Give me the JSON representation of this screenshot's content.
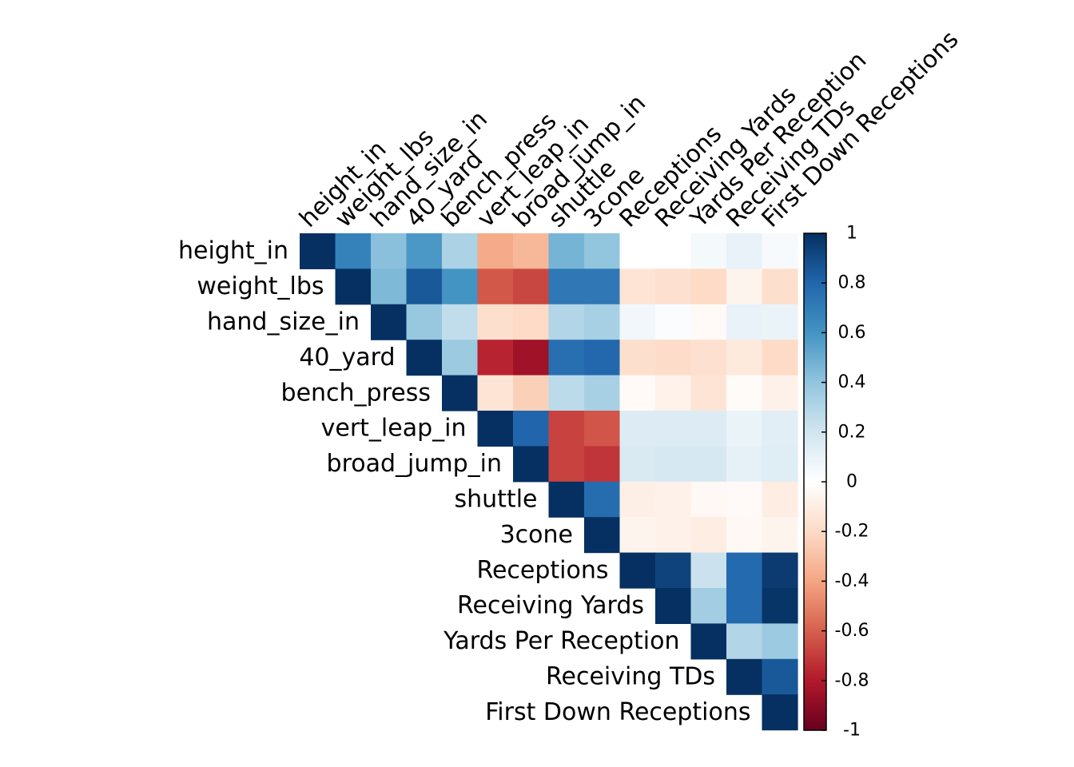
{
  "chart_data": {
    "type": "heatmap",
    "variables": [
      "height_in",
      "weight_lbs",
      "hand_size_in",
      "40_yard",
      "bench_press",
      "vert_leap_in",
      "broad_jump_in",
      "shuttle",
      "3cone",
      "Receptions",
      "Receiving Yards",
      "Yards Per Reception",
      "Receiving TDs",
      "First Down Receptions"
    ],
    "triangle": "upper",
    "matrix": [
      [
        1,
        0.68,
        0.42,
        0.58,
        0.32,
        -0.38,
        -0.33,
        0.47,
        0.4,
        0.0,
        0.0,
        0.05,
        0.1,
        0.04
      ],
      [
        null,
        1,
        0.45,
        0.85,
        0.6,
        -0.62,
        -0.67,
        0.72,
        0.72,
        -0.15,
        -0.17,
        -0.2,
        -0.06,
        -0.18
      ],
      [
        null,
        null,
        1,
        0.38,
        0.25,
        -0.18,
        -0.2,
        0.3,
        0.33,
        0.06,
        0.02,
        -0.03,
        0.1,
        0.09
      ],
      [
        null,
        null,
        null,
        1,
        0.37,
        -0.77,
        -0.85,
        0.76,
        0.79,
        -0.18,
        -0.19,
        -0.17,
        -0.12,
        -0.2
      ],
      [
        null,
        null,
        null,
        null,
        1,
        -0.15,
        -0.24,
        0.27,
        0.33,
        -0.03,
        -0.07,
        -0.15,
        -0.02,
        -0.08
      ],
      [
        null,
        null,
        null,
        null,
        null,
        1,
        0.8,
        -0.68,
        -0.63,
        0.15,
        0.15,
        0.15,
        0.09,
        0.13
      ],
      [
        null,
        null,
        null,
        null,
        null,
        null,
        1,
        -0.68,
        -0.72,
        0.16,
        0.18,
        0.18,
        0.11,
        0.14
      ],
      [
        null,
        null,
        null,
        null,
        null,
        null,
        null,
        1,
        0.77,
        -0.09,
        -0.08,
        -0.04,
        -0.03,
        -0.1
      ],
      [
        null,
        null,
        null,
        null,
        null,
        null,
        null,
        null,
        1,
        -0.06,
        -0.08,
        -0.1,
        -0.04,
        -0.06
      ],
      [
        null,
        null,
        null,
        null,
        null,
        null,
        null,
        null,
        null,
        1,
        0.93,
        0.22,
        0.78,
        0.96
      ],
      [
        null,
        null,
        null,
        null,
        null,
        null,
        null,
        null,
        null,
        null,
        1,
        0.35,
        0.78,
        0.98
      ],
      [
        null,
        null,
        null,
        null,
        null,
        null,
        null,
        null,
        null,
        null,
        null,
        1,
        0.3,
        0.37
      ],
      [
        null,
        null,
        null,
        null,
        null,
        null,
        null,
        null,
        null,
        null,
        null,
        null,
        1,
        0.85
      ],
      [
        null,
        null,
        null,
        null,
        null,
        null,
        null,
        null,
        null,
        null,
        null,
        null,
        null,
        1
      ]
    ],
    "value_range": [
      -1,
      1
    ],
    "colorbar": {
      "ticks": [
        1,
        0.8,
        0.6,
        0.4,
        0.2,
        0,
        -0.2,
        -0.4,
        -0.6,
        -0.8,
        -1
      ],
      "tick_labels": [
        "1",
        "0.8",
        "0.6",
        "0.4",
        "0.2",
        "0",
        "-0.2",
        "-0.4",
        "-0.6",
        "-0.8",
        "-1"
      ],
      "placement": "right"
    },
    "palette": [
      "#67001F",
      "#B2182B",
      "#D6604D",
      "#F4A582",
      "#FDDBC7",
      "#FFFFFF",
      "#D1E5F0",
      "#92C5DE",
      "#4393C3",
      "#2166AC",
      "#053061"
    ],
    "title": "",
    "xlabel": "",
    "ylabel": ""
  }
}
